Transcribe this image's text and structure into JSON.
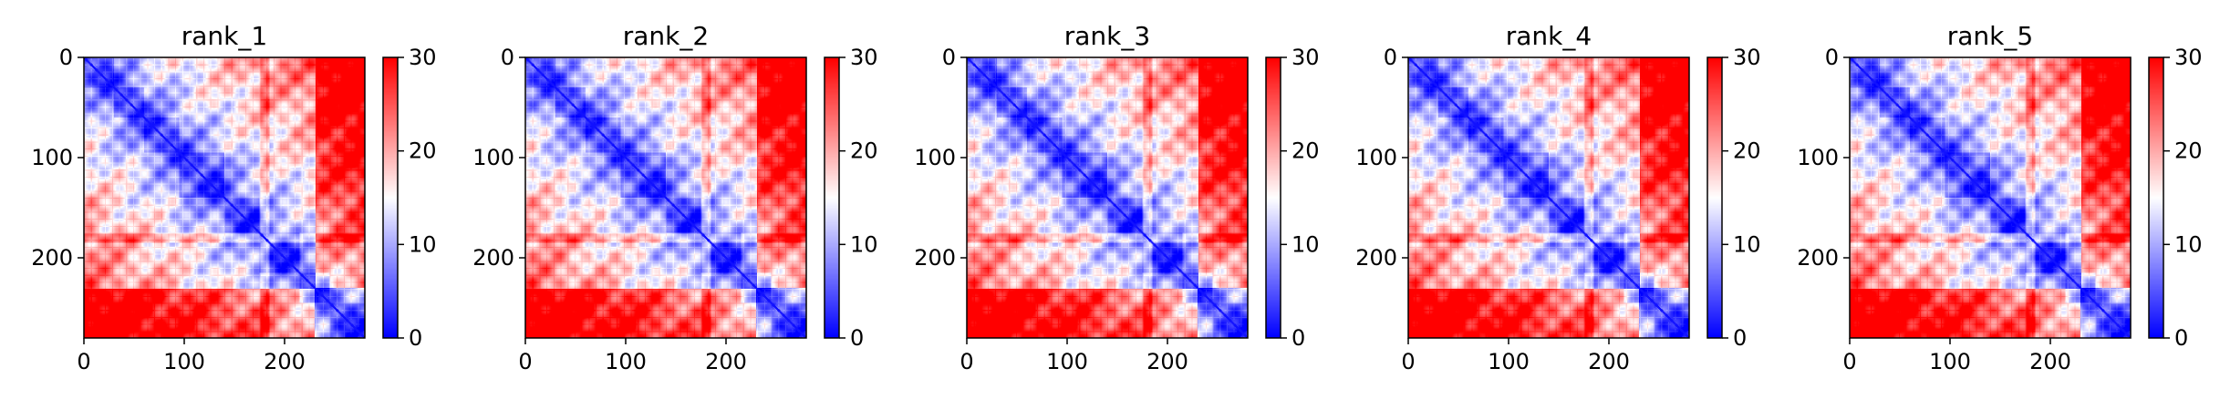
{
  "chart_data": [
    {
      "type": "heatmap",
      "title": "rank_1",
      "matrix_size": 280,
      "xlim": [
        0,
        280
      ],
      "ylim": [
        280,
        0
      ],
      "x_ticks": [
        0,
        100,
        200
      ],
      "y_ticks": [
        0,
        100,
        200
      ],
      "x_tick_labels": [
        "0",
        "100",
        "200"
      ],
      "y_tick_labels": [
        "0",
        "100",
        "200"
      ],
      "colormap": [
        "#0000ff",
        "#ffffff",
        "#ff0000"
      ],
      "color_range": [
        0,
        30
      ],
      "colorbar_ticks": [
        0,
        10,
        20,
        30
      ],
      "colorbar_tick_labels": [
        "0",
        "10",
        "20",
        "30"
      ],
      "grid": false
    },
    {
      "type": "heatmap",
      "title": "rank_2",
      "matrix_size": 280,
      "xlim": [
        0,
        280
      ],
      "ylim": [
        280,
        0
      ],
      "x_ticks": [
        0,
        100,
        200
      ],
      "y_ticks": [
        0,
        100,
        200
      ],
      "x_tick_labels": [
        "0",
        "100",
        "200"
      ],
      "y_tick_labels": [
        "0",
        "100",
        "200"
      ],
      "colormap": [
        "#0000ff",
        "#ffffff",
        "#ff0000"
      ],
      "color_range": [
        0,
        30
      ],
      "colorbar_ticks": [
        0,
        10,
        20,
        30
      ],
      "colorbar_tick_labels": [
        "0",
        "10",
        "20",
        "30"
      ],
      "grid": false
    },
    {
      "type": "heatmap",
      "title": "rank_3",
      "matrix_size": 280,
      "xlim": [
        0,
        280
      ],
      "ylim": [
        280,
        0
      ],
      "x_ticks": [
        0,
        100,
        200
      ],
      "y_ticks": [
        0,
        100,
        200
      ],
      "x_tick_labels": [
        "0",
        "100",
        "200"
      ],
      "y_tick_labels": [
        "0",
        "100",
        "200"
      ],
      "colormap": [
        "#0000ff",
        "#ffffff",
        "#ff0000"
      ],
      "color_range": [
        0,
        30
      ],
      "colorbar_ticks": [
        0,
        10,
        20,
        30
      ],
      "colorbar_tick_labels": [
        "0",
        "10",
        "20",
        "30"
      ],
      "grid": false
    },
    {
      "type": "heatmap",
      "title": "rank_4",
      "matrix_size": 280,
      "xlim": [
        0,
        280
      ],
      "ylim": [
        280,
        0
      ],
      "x_ticks": [
        0,
        100,
        200
      ],
      "y_ticks": [
        0,
        100,
        200
      ],
      "x_tick_labels": [
        "0",
        "100",
        "200"
      ],
      "y_tick_labels": [
        "0",
        "100",
        "200"
      ],
      "colormap": [
        "#0000ff",
        "#ffffff",
        "#ff0000"
      ],
      "color_range": [
        0,
        30
      ],
      "colorbar_ticks": [
        0,
        10,
        20,
        30
      ],
      "colorbar_tick_labels": [
        "0",
        "10",
        "20",
        "30"
      ],
      "grid": false
    },
    {
      "type": "heatmap",
      "title": "rank_5",
      "matrix_size": 280,
      "xlim": [
        0,
        280
      ],
      "ylim": [
        280,
        0
      ],
      "x_ticks": [
        0,
        100,
        200
      ],
      "y_ticks": [
        0,
        100,
        200
      ],
      "x_tick_labels": [
        "0",
        "100",
        "200"
      ],
      "y_tick_labels": [
        "0",
        "100",
        "200"
      ],
      "colormap": [
        "#0000ff",
        "#ffffff",
        "#ff0000"
      ],
      "color_range": [
        0,
        30
      ],
      "colorbar_ticks": [
        0,
        10,
        20,
        30
      ],
      "colorbar_tick_labels": [
        "0",
        "10",
        "20",
        "30"
      ],
      "grid": false
    }
  ]
}
